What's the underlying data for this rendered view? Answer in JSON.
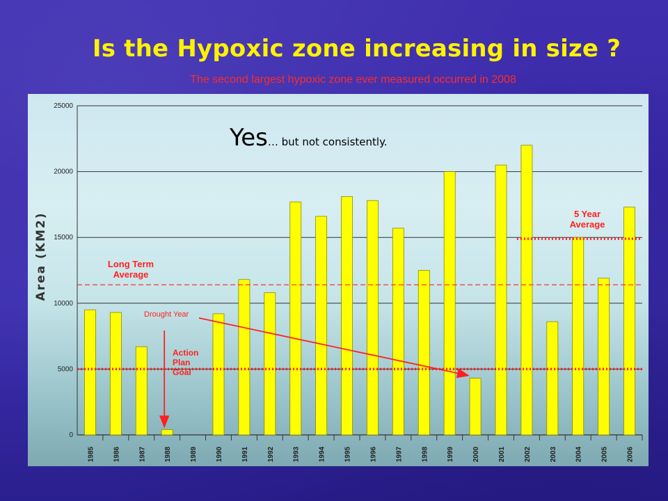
{
  "slide": {
    "title": "Is the Hypoxic zone increasing in size ?",
    "subtitle": "The second largest hypoxic zone ever measured occurred in 2008",
    "annotation_big": "Yes",
    "annotation_small": "… but not consistently."
  },
  "chart_data": {
    "type": "bar",
    "title": "",
    "xlabel": "",
    "ylabel": "Area (KM2)",
    "ylim": [
      0,
      25000
    ],
    "yticks": [
      0,
      5000,
      10000,
      15000,
      20000,
      25000
    ],
    "grid": "major horizontal lines at 5000 intervals",
    "categories": [
      "1985",
      "1986",
      "1987",
      "1988",
      "1989",
      "1990",
      "1991",
      "1992",
      "1993",
      "1994",
      "1995",
      "1996",
      "1997",
      "1998",
      "1999",
      "2000",
      "2001",
      "2002",
      "2003",
      "2004",
      "2005",
      "2006"
    ],
    "values": [
      9500,
      9300,
      6700,
      400,
      0,
      9200,
      11800,
      10800,
      17700,
      16600,
      18100,
      17800,
      15700,
      12500,
      20000,
      4300,
      20500,
      22000,
      8600,
      15000,
      11900,
      17300
    ],
    "bar_color": "#ffff00",
    "reference_lines": [
      {
        "label": "Long Term Average",
        "value": 11400,
        "style": "dashed",
        "color": "#ff2020"
      },
      {
        "label": "5 Year Average",
        "value": 14900,
        "style": "dotted",
        "color": "#ff2020",
        "from_category": "2002"
      },
      {
        "label": "Action Plan Goal",
        "value": 5000,
        "style": "dotted",
        "color": "#ff2020"
      }
    ],
    "annotations": [
      {
        "text": "Drought Year",
        "arrow_to_category": "2000"
      },
      {
        "text": "Action Plan Goal",
        "arrow_to_category": "1988"
      }
    ]
  }
}
